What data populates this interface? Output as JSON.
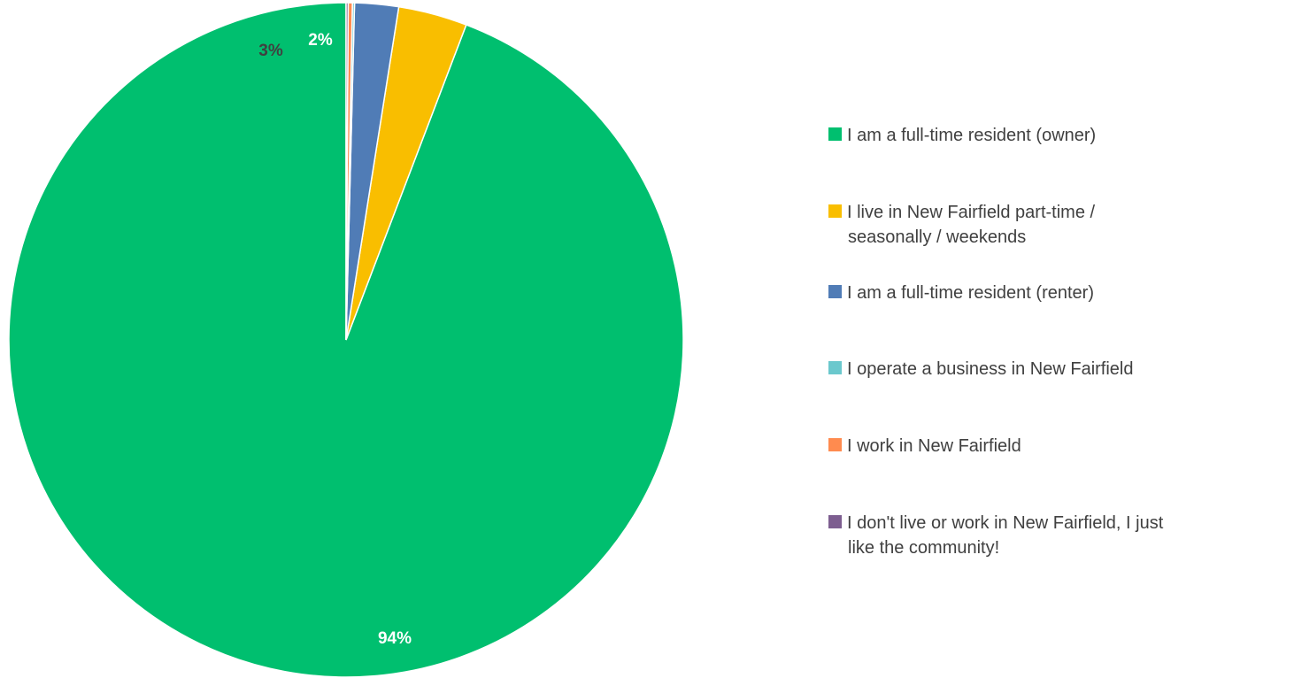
{
  "chart_data": {
    "type": "pie",
    "title": "",
    "start_angle_deg": 0,
    "direction": "clockwise",
    "slices": [
      {
        "label": "I am a full-time resident (owner)",
        "value": 94.2,
        "data_label": "94%",
        "color": "#00BF6F",
        "label_color": "#FFFFFF"
      },
      {
        "label": "I live in New Fairfield part-time / seasonally / weekends",
        "value": 3.3,
        "data_label": "3%",
        "color": "#F9BE00",
        "label_color": "#404040"
      },
      {
        "label": "I am a full-time resident (renter)",
        "value": 2.1,
        "data_label": "2%",
        "color": "#507CB6",
        "label_color": "#FFFFFF"
      },
      {
        "label": "I operate a business in New Fairfield",
        "value": 0.1,
        "data_label": "",
        "color": "#6BC8CD",
        "label_color": "#404040"
      },
      {
        "label": "I work in New Fairfield",
        "value": 0.2,
        "data_label": "",
        "color": "#FF8B4F",
        "label_color": "#404040"
      },
      {
        "label": "I don't live or work in New Fairfield, I just like the community!",
        "value": 0.1,
        "data_label": "",
        "color": "#7D5E90",
        "label_color": "#404040"
      }
    ],
    "legend": {
      "position": "right",
      "entries": [
        {
          "lines": [
            "I am a full-time resident (owner)"
          ],
          "color": "#00BF6F"
        },
        {
          "lines": [
            "I live in New Fairfield part-time /",
            "seasonally / weekends"
          ],
          "color": "#F9BE00"
        },
        {
          "lines": [
            "I am a full-time resident (renter)"
          ],
          "color": "#507CB6"
        },
        {
          "lines": [
            "I operate a business in New Fairfield"
          ],
          "color": "#6BC8CD"
        },
        {
          "lines": [
            "I work in New Fairfield"
          ],
          "color": "#FF8B4F"
        },
        {
          "lines": [
            "I don't live or work in New Fairfield, I just",
            "like the community!"
          ],
          "color": "#7D5E90"
        }
      ]
    }
  }
}
